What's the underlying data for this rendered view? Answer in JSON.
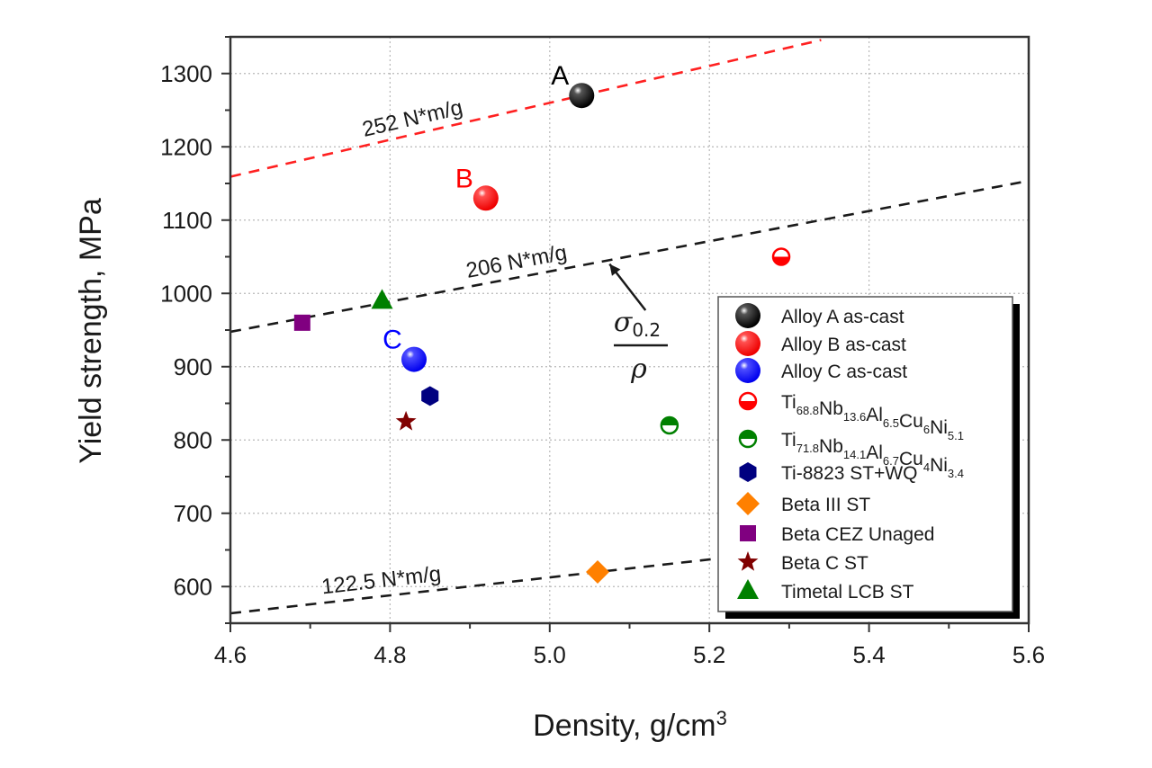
{
  "chart_data": {
    "type": "scatter",
    "title": "",
    "xlabel": "Density, g/cm",
    "xlabel_superscript": "3",
    "ylabel": "Yield strength, MPa",
    "xlim": [
      4.6,
      5.6
    ],
    "ylim": [
      550,
      1350
    ],
    "xticks": [
      4.6,
      4.8,
      5.0,
      5.2,
      5.4,
      5.6
    ],
    "xtick_labels": [
      "4.6",
      "4.8",
      "5.0",
      "5.2",
      "5.4",
      "5.6"
    ],
    "yticks": [
      600,
      700,
      800,
      900,
      1000,
      1100,
      1200,
      1300
    ],
    "ytick_labels": [
      "600",
      "700",
      "800",
      "900",
      "1000",
      "1100",
      "1200",
      "1300"
    ],
    "grid": true,
    "legend_position": "bottom-right",
    "series": [
      {
        "name": "Alloy A as-cast",
        "name_parts": [
          [
            "Alloy A as-cast",
            ""
          ]
        ],
        "marker": "sphere",
        "color": "#000000",
        "x": [
          5.04
        ],
        "y": [
          1270
        ],
        "point_label": "A"
      },
      {
        "name": "Alloy B as-cast",
        "name_parts": [
          [
            "Alloy B as-cast",
            ""
          ]
        ],
        "marker": "sphere",
        "color": "#ff0000",
        "x": [
          4.92
        ],
        "y": [
          1130
        ],
        "point_label": "B"
      },
      {
        "name": "Alloy C as-cast",
        "name_parts": [
          [
            "Alloy C as-cast",
            ""
          ]
        ],
        "marker": "sphere",
        "color": "#0000ff",
        "x": [
          4.83
        ],
        "y": [
          910
        ],
        "point_label": "C"
      },
      {
        "name": "Ti68.8Nb13.6Al6.5Cu6Ni5.1",
        "name_parts": [
          [
            "Ti",
            "68.8"
          ],
          [
            "Nb",
            "13.6"
          ],
          [
            "Al",
            "6.5"
          ],
          [
            "Cu",
            "6"
          ],
          [
            "Ni",
            "5.1"
          ]
        ],
        "marker": "half-bottom",
        "color": "#ff0000",
        "x": [
          5.29
        ],
        "y": [
          1050
        ]
      },
      {
        "name": "Ti71.8Nb14.1Al6.7Cu4Ni3.4",
        "name_parts": [
          [
            "Ti",
            "71.8"
          ],
          [
            "Nb",
            "14.1"
          ],
          [
            "Al",
            "6.7"
          ],
          [
            "Cu",
            "4"
          ],
          [
            "Ni",
            "3.4"
          ]
        ],
        "marker": "half-top",
        "color": "#008000",
        "x": [
          5.15
        ],
        "y": [
          820
        ]
      },
      {
        "name": "Ti-8823 ST+WQ",
        "name_parts": [
          [
            "Ti-8823 ST+WQ",
            ""
          ]
        ],
        "marker": "hexagon",
        "color": "#000080",
        "x": [
          4.85
        ],
        "y": [
          860
        ]
      },
      {
        "name": "Beta III ST",
        "name_parts": [
          [
            "Beta III ST",
            ""
          ]
        ],
        "marker": "diamond",
        "color": "#ff8000",
        "x": [
          5.06
        ],
        "y": [
          620
        ]
      },
      {
        "name": "Beta CEZ Unaged",
        "name_parts": [
          [
            "Beta CEZ Unaged",
            ""
          ]
        ],
        "marker": "square",
        "color": "#800080",
        "x": [
          4.69
        ],
        "y": [
          960
        ]
      },
      {
        "name": "Beta C ST",
        "name_parts": [
          [
            "Beta C ST",
            ""
          ]
        ],
        "marker": "star",
        "color": "#800000",
        "x": [
          4.82
        ],
        "y": [
          825
        ]
      },
      {
        "name": "Timetal LCB ST",
        "name_parts": [
          [
            "Timetal LCB ST",
            ""
          ]
        ],
        "marker": "triangle",
        "color": "#008000",
        "x": [
          4.79
        ],
        "y": [
          990
        ]
      }
    ],
    "reference_lines": [
      {
        "label": "252 N*m/g",
        "slope": 252,
        "x_range": [
          4.6,
          5.34
        ],
        "color": "#ff2020",
        "label_at_x": 4.83
      },
      {
        "label": "206 N*m/g",
        "slope": 206,
        "x_range": [
          4.6,
          5.6
        ],
        "color": "#1a1a1a",
        "label_at_x": 4.96
      },
      {
        "label": "122.5 N*m/g",
        "slope": 122.5,
        "x_range": [
          4.6,
          5.21
        ],
        "color": "#1a1a1a",
        "label_at_x": 4.79
      }
    ],
    "annotation": {
      "numerator": "σ",
      "numerator_sub": "0.2",
      "denominator": "ρ",
      "arrow_from": [
        5.12,
        977
      ],
      "arrow_to": [
        5.075,
        1040
      ]
    }
  }
}
